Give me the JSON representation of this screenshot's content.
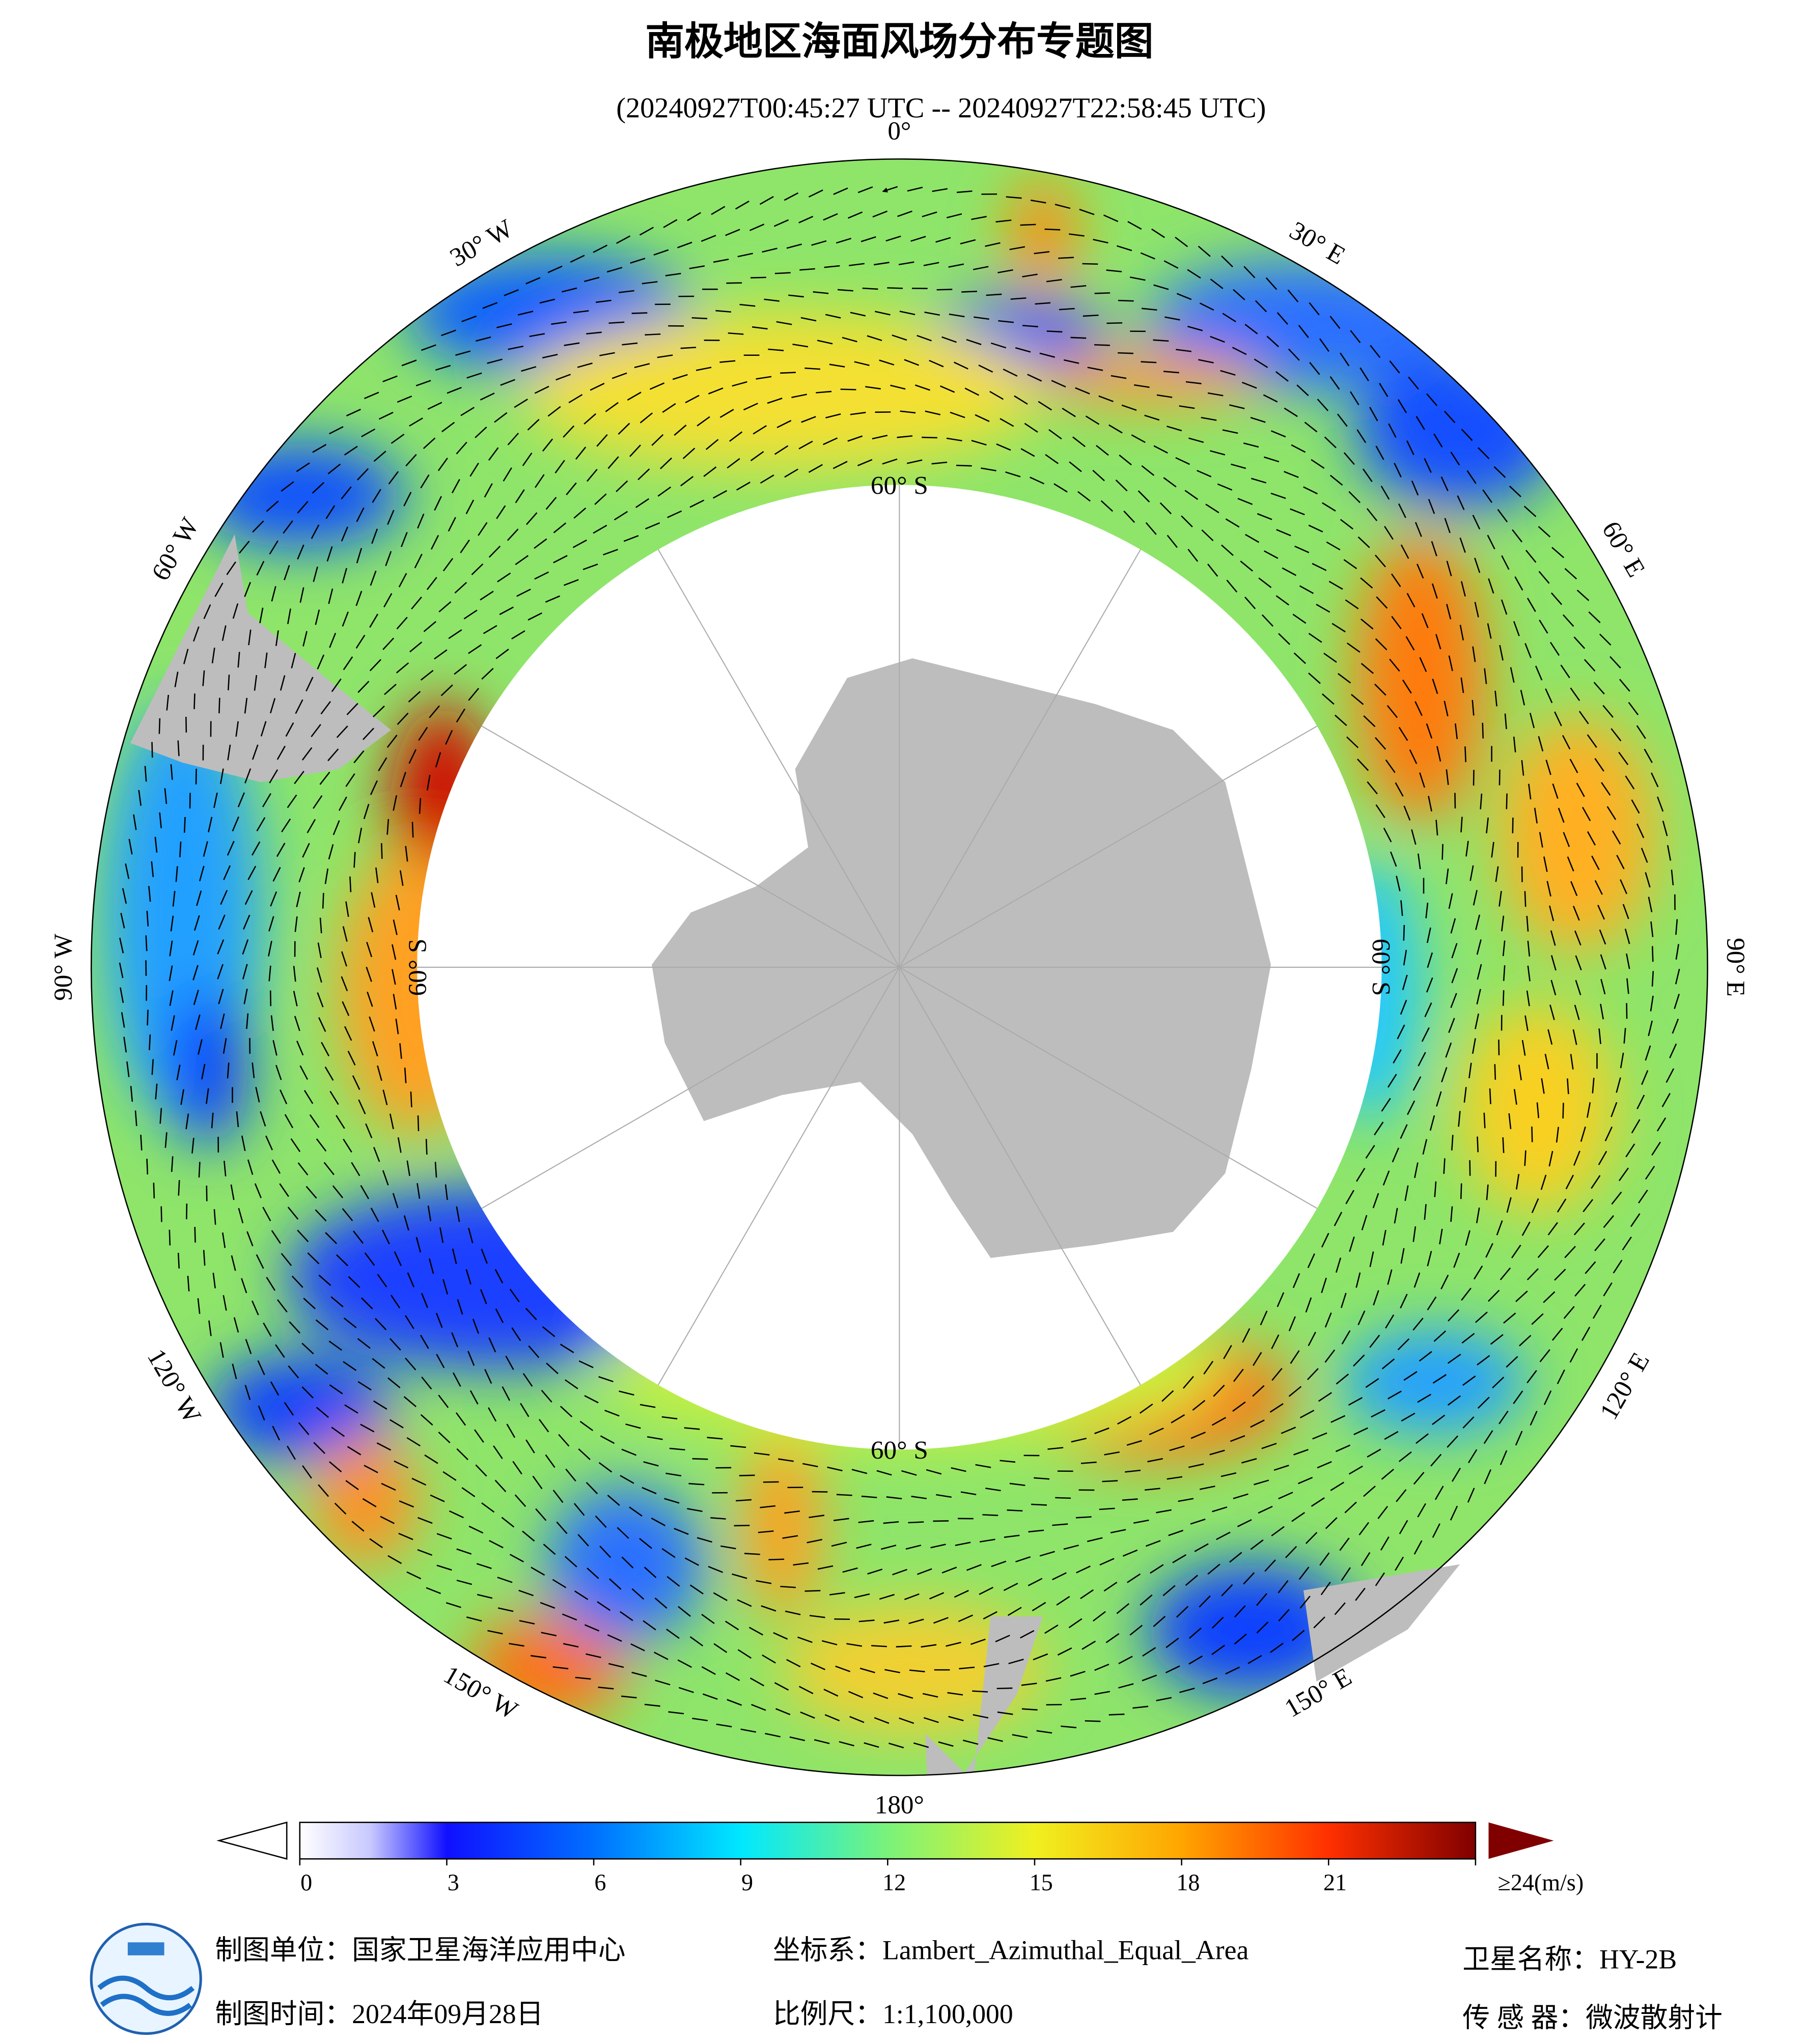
{
  "title": "南极地区海面风场分布专题图",
  "subtitle": "(20240927T00:45:27 UTC -- 20240927T22:58:45 UTC)",
  "map": {
    "longitude_labels": [
      "0°",
      "30° E",
      "60° E",
      "90° E",
      "120° E",
      "150° E",
      "180°",
      "150° W",
      "120° W",
      "90° W",
      "60° W",
      "30° W"
    ],
    "latitude_labels": [
      "60° S",
      "60° S",
      "60° S",
      "60° S"
    ]
  },
  "colorbar": {
    "lim": [
      0,
      24
    ],
    "ticks": [
      0,
      3,
      6,
      9,
      12,
      15,
      18,
      21,
      {
        "value": 24,
        "label": "≥24(m/s)"
      }
    ]
  },
  "footer": {
    "unit": "制图单位：国家卫星海洋应用中心",
    "date": "制图时间：2024年09月28日",
    "crs": "坐标系：Lambert_Azimuthal_Equal_Area",
    "scale": "比例尺：1:1,100,000",
    "satellite": "卫星名称：HY-2B",
    "sensor": "传 感 器：微波散射计"
  }
}
